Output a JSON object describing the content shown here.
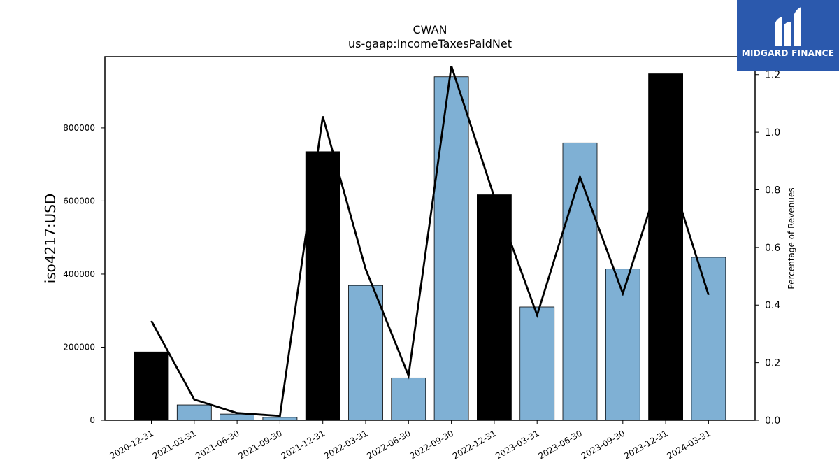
{
  "chart_data": {
    "type": "bar",
    "title": "CWAN",
    "subtitle": "us-gaap:IncomeTaxesPaidNet",
    "ylabel": "iso4217:USD",
    "y2label": "Percentage of Revenues",
    "categories": [
      "2020-12-31",
      "2021-03-31",
      "2021-06-30",
      "2021-09-30",
      "2021-12-31",
      "2022-03-31",
      "2022-06-30",
      "2022-09-30",
      "2022-12-31",
      "2023-03-31",
      "2023-06-30",
      "2023-09-30",
      "2023-12-31",
      "2024-03-31"
    ],
    "values": [
      187000,
      42000,
      17000,
      8000,
      735000,
      369000,
      116000,
      940000,
      617000,
      310000,
      759000,
      414000,
      948000,
      446000
    ],
    "bar_colors": [
      "#000000",
      "#7fb0d4",
      "#7fb0d4",
      "#7fb0d4",
      "#000000",
      "#7fb0d4",
      "#7fb0d4",
      "#7fb0d4",
      "#000000",
      "#7fb0d4",
      "#7fb0d4",
      "#7fb0d4",
      "#000000",
      "#7fb0d4"
    ],
    "line_series": {
      "values": [
        0.345,
        0.072,
        0.025,
        0.015,
        1.055,
        0.525,
        0.155,
        1.23,
        0.775,
        0.365,
        0.845,
        0.44,
        0.905,
        0.435
      ],
      "color": "#000000"
    },
    "yticks": [
      0,
      200000,
      400000,
      600000,
      800000
    ],
    "ylim": [
      0,
      995000
    ],
    "y2ticks": [
      0.0,
      0.2,
      0.4,
      0.6,
      0.8,
      1.0,
      1.2
    ],
    "y2tick_labels": [
      "0.0",
      "0.2",
      "0.4",
      "0.6",
      "0.8",
      "1.0",
      "1.2"
    ],
    "y2lim": [
      0,
      1.2625
    ],
    "grid": false,
    "legend": "none"
  },
  "logo": {
    "text": "MIDGARD FINANCE",
    "bg_color": "#2b59ad"
  }
}
